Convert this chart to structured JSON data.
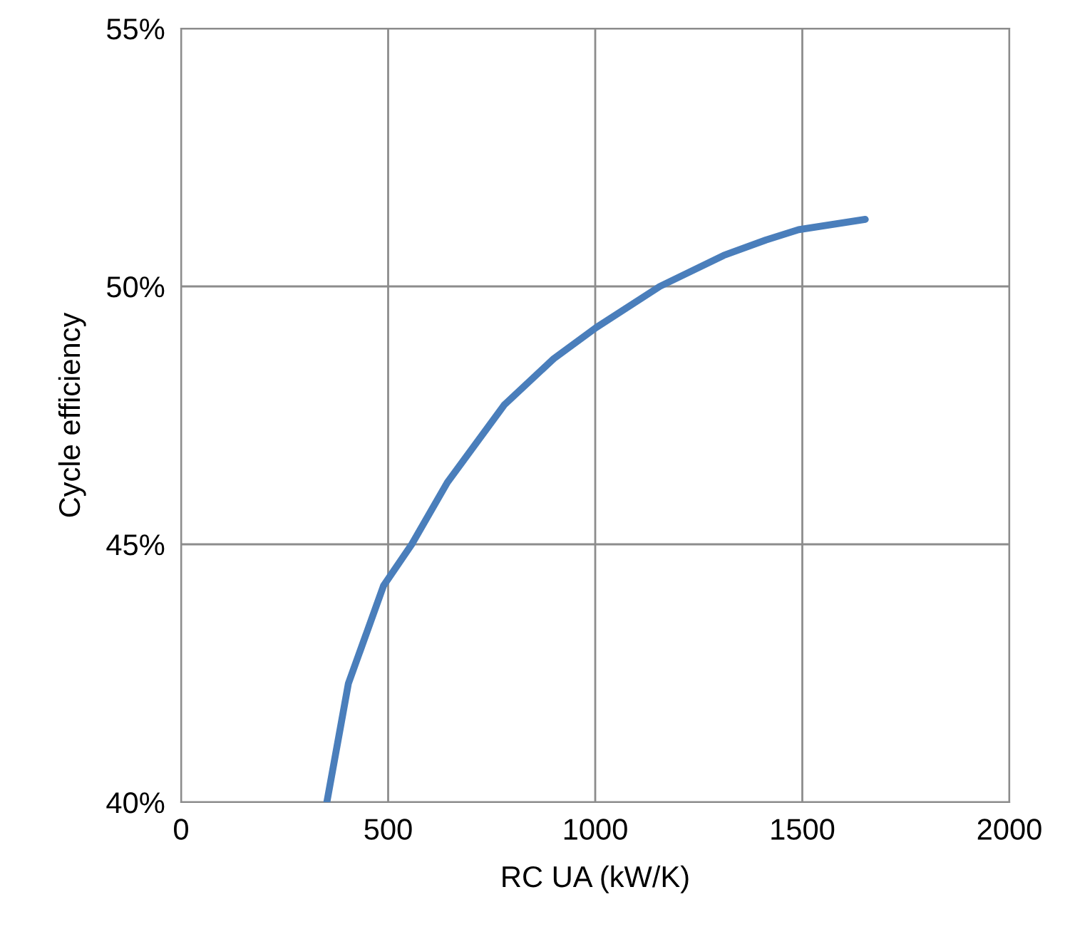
{
  "chart_data": {
    "type": "line",
    "xlabel": "RC UA (kW/K)",
    "ylabel": "Cycle efficiency",
    "series": [
      {
        "color": "#4a7ebb",
        "x": [
          352,
          404,
          489,
          557,
          643,
          780,
          900,
          1002,
          1156,
          1310,
          1412,
          1491,
          1652
        ],
        "values": [
          40.0,
          42.3,
          44.2,
          45.0,
          46.2,
          47.7,
          48.6,
          49.2,
          50.0,
          50.6,
          50.9,
          51.1,
          51.3
        ]
      }
    ],
    "xlim": [
      0,
      2000
    ],
    "xticks": [
      0,
      500,
      1000,
      1500,
      2000
    ],
    "ylim": [
      40,
      55
    ],
    "yticks": [
      {
        "value": 40,
        "label": "40%"
      },
      {
        "value": 45,
        "label": "45%"
      },
      {
        "value": 50,
        "label": "50%"
      },
      {
        "value": 55,
        "label": "55%"
      }
    ],
    "grid": true,
    "marker": "none",
    "line_style": "solid"
  }
}
